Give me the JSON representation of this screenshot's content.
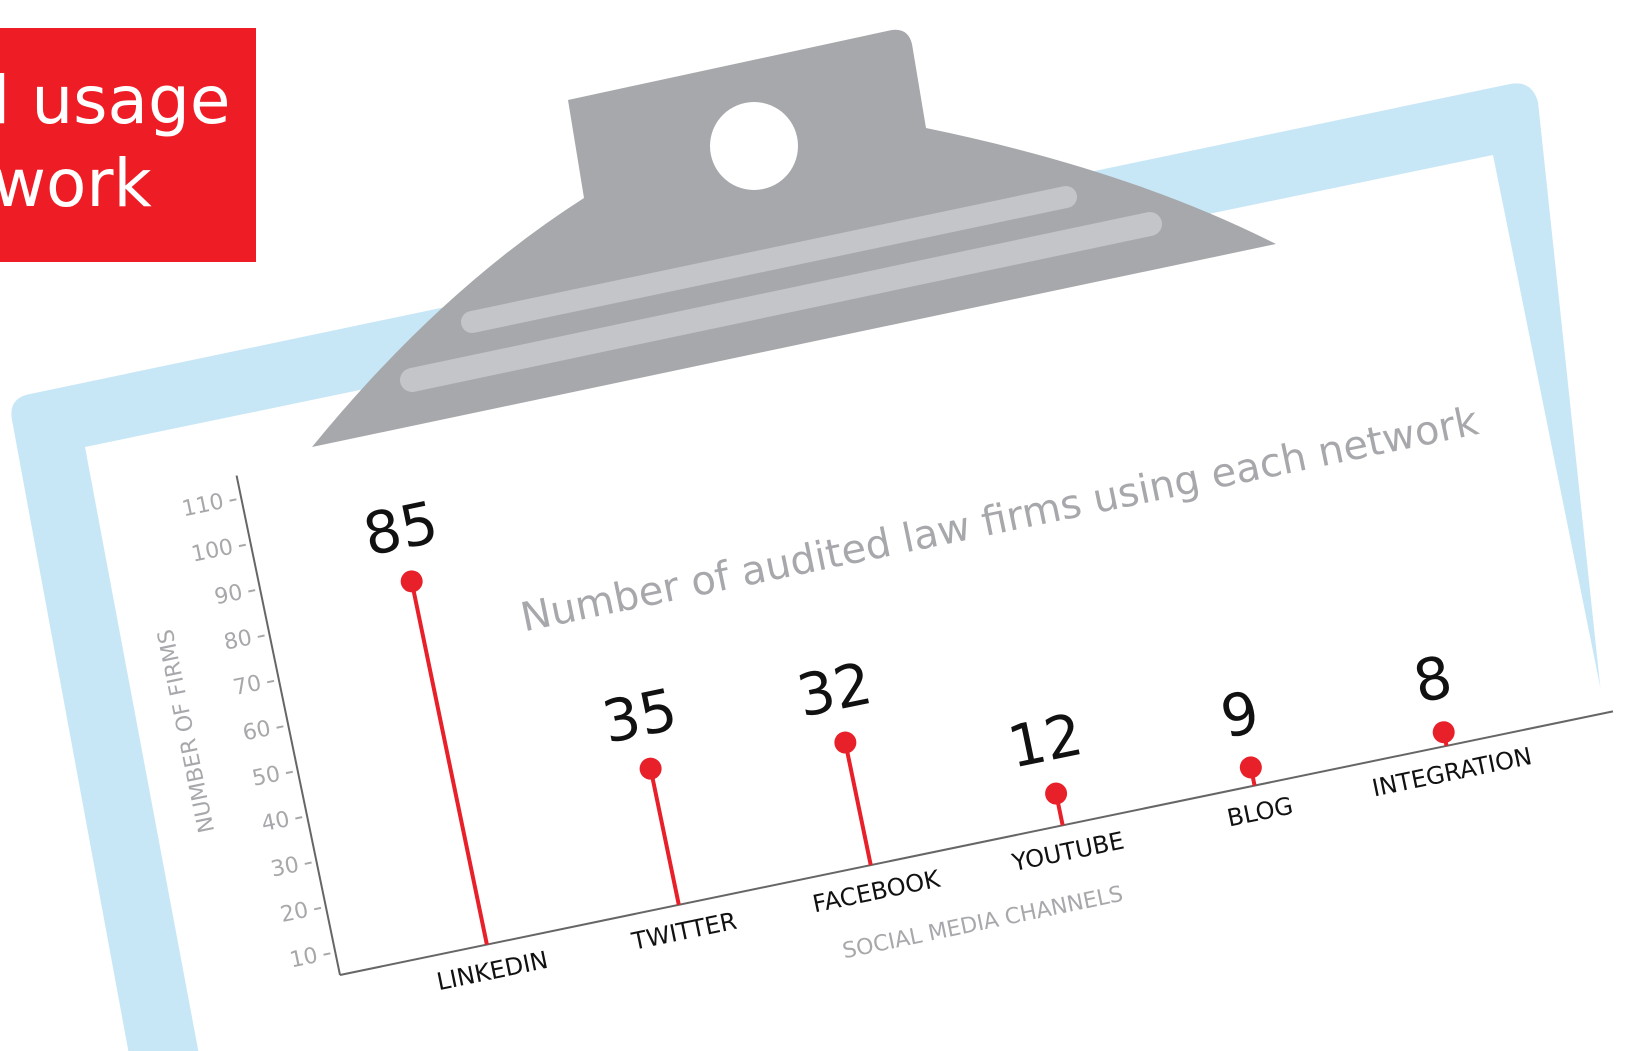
{
  "banner": [
    "l usage",
    "work"
  ],
  "chart_data": {
    "type": "lollipop",
    "title": "Number of audited law firms using each network",
    "x_label": "SOCIAL MEDIA CHANNELS",
    "y_label": "NUMBER OF FIRMS",
    "categories": [
      "LINKEDIN",
      "TWITTER",
      "FACEBOOK",
      "YOUTUBE",
      "BLOG",
      "INTEGRATION"
    ],
    "values": [
      85,
      35,
      32,
      12,
      9,
      8
    ],
    "color": "#e8202a",
    "ylim": [
      5,
      115
    ],
    "yticks": [
      10,
      20,
      30,
      40,
      50,
      60,
      70,
      80,
      90,
      100,
      110
    ],
    "grid": false
  }
}
